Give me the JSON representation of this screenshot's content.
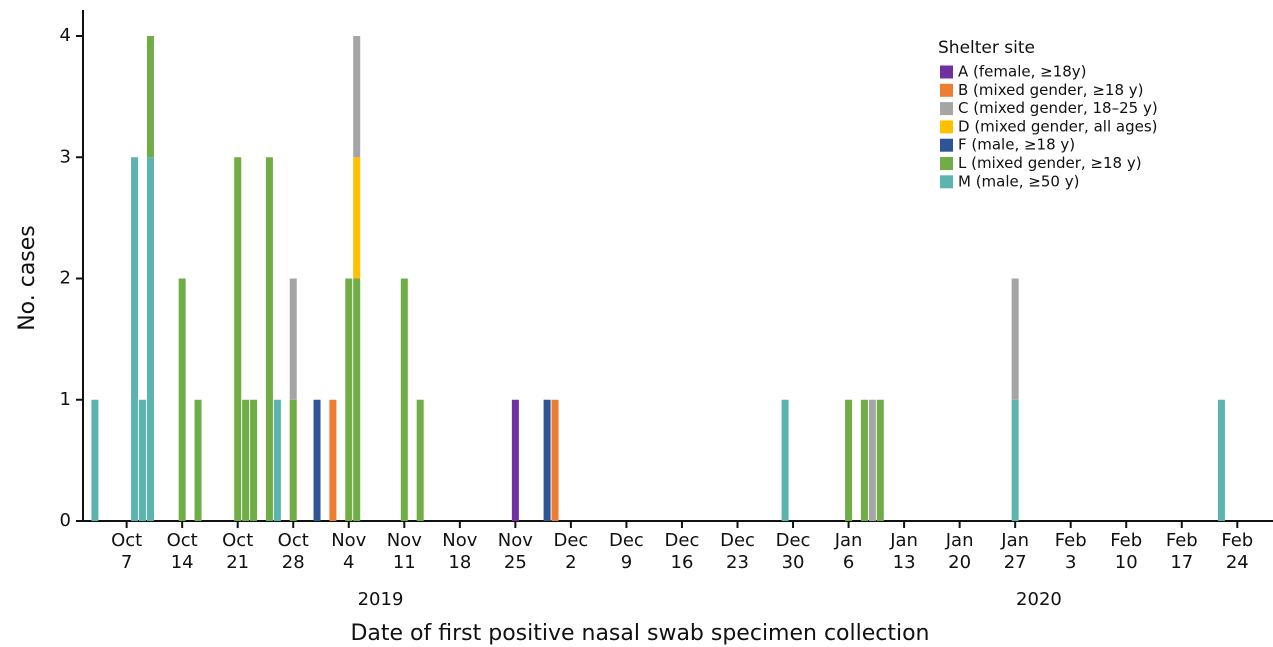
{
  "chart_data": {
    "type": "stacked_bar",
    "xlabel": "Date of first positive nasal swab specimen collection",
    "ylabel": "No. cases",
    "legend_title": "Shelter site",
    "legend_position": "upper right",
    "annotations": [
      {
        "text": "2019",
        "x": "2019-11-08"
      },
      {
        "text": "2020",
        "x": "2020-01-30"
      }
    ],
    "x": [
      "2019-10-03",
      "2019-10-08",
      "2019-10-09",
      "2019-10-10",
      "2019-10-14",
      "2019-10-16",
      "2019-10-21",
      "2019-10-22",
      "2019-10-23",
      "2019-10-25",
      "2019-10-26",
      "2019-10-28",
      "2019-10-31",
      "2019-11-02",
      "2019-11-04",
      "2019-11-05",
      "2019-11-11",
      "2019-11-13",
      "2019-11-25",
      "2019-11-29",
      "2019-11-30",
      "2019-12-29",
      "2020-01-06",
      "2020-01-08",
      "2020-01-09",
      "2020-01-10",
      "2020-01-27",
      "2020-02-22"
    ],
    "series": [
      {
        "name": "A (female, ≥18y)",
        "color": "#7030a0",
        "values": [
          0,
          0,
          0,
          0,
          0,
          0,
          0,
          0,
          0,
          0,
          0,
          0,
          0,
          0,
          0,
          0,
          0,
          0,
          1,
          0,
          0,
          0,
          0,
          0,
          0,
          0,
          0,
          0
        ]
      },
      {
        "name": "B (mixed gender, ≥18 y)",
        "color": "#ed7d31",
        "values": [
          0,
          0,
          0,
          0,
          0,
          0,
          0,
          0,
          0,
          0,
          0,
          0,
          0,
          1,
          0,
          0,
          0,
          0,
          0,
          0,
          1,
          0,
          0,
          0,
          0,
          0,
          0,
          0
        ]
      },
      {
        "name": "C (mixed gender, 18–25 y)",
        "color": "#a5a5a5",
        "values": [
          0,
          0,
          0,
          0,
          0,
          0,
          0,
          0,
          0,
          0,
          0,
          1,
          0,
          0,
          0,
          1,
          0,
          0,
          0,
          0,
          0,
          0,
          0,
          0,
          1,
          0,
          1,
          0
        ]
      },
      {
        "name": "D (mixed gender, all ages)",
        "color": "#ffc000",
        "values": [
          0,
          0,
          0,
          0,
          0,
          0,
          0,
          0,
          0,
          0,
          0,
          0,
          0,
          0,
          0,
          1,
          0,
          0,
          0,
          0,
          0,
          0,
          0,
          0,
          0,
          0,
          0,
          0
        ]
      },
      {
        "name": "F (male, ≥18 y)",
        "color": "#2f5597",
        "values": [
          0,
          0,
          0,
          0,
          0,
          0,
          0,
          0,
          0,
          0,
          0,
          0,
          1,
          0,
          0,
          0,
          0,
          0,
          0,
          1,
          0,
          0,
          0,
          0,
          0,
          0,
          0,
          0
        ]
      },
      {
        "name": "L (mixed gender, ≥18 y)",
        "color": "#70ad47",
        "values": [
          0,
          0,
          0,
          1,
          2,
          1,
          3,
          1,
          1,
          3,
          0,
          1,
          0,
          0,
          2,
          2,
          2,
          1,
          0,
          0,
          0,
          0,
          1,
          1,
          0,
          1,
          0,
          0
        ]
      },
      {
        "name": "M (male, ≥50 y)",
        "color": "#5bb5ae",
        "values": [
          1,
          3,
          1,
          3,
          0,
          0,
          0,
          0,
          0,
          0,
          1,
          0,
          0,
          0,
          0,
          0,
          0,
          0,
          0,
          0,
          0,
          1,
          0,
          0,
          0,
          0,
          1,
          1
        ]
      }
    ],
    "stack_order": [
      "M (male, ≥50 y)",
      "L (mixed gender, ≥18 y)",
      "F (male, ≥18 y)",
      "D (mixed gender, all ages)",
      "C (mixed gender, 18–25 y)",
      "B (mixed gender, ≥18 y)",
      "A (female, ≥18y)"
    ],
    "xlim": [
      "2019-10-01T12:00:00Z",
      "2020-02-28T12:00:00Z"
    ],
    "xticks": [
      {
        "value": "2019-10-07",
        "label": "Oct 7"
      },
      {
        "value": "2019-10-14",
        "label": "Oct 14"
      },
      {
        "value": "2019-10-21",
        "label": "Oct 21"
      },
      {
        "value": "2019-10-28",
        "label": "Oct 28"
      },
      {
        "value": "2019-11-04",
        "label": "Nov 4"
      },
      {
        "value": "2019-11-11",
        "label": "Nov 11"
      },
      {
        "value": "2019-11-18",
        "label": "Nov 18"
      },
      {
        "value": "2019-11-25",
        "label": "Nov 25"
      },
      {
        "value": "2019-12-02",
        "label": "Dec 2"
      },
      {
        "value": "2019-12-09",
        "label": "Dec 9"
      },
      {
        "value": "2019-12-16",
        "label": "Dec 16"
      },
      {
        "value": "2019-12-23",
        "label": "Dec 23"
      },
      {
        "value": "2019-12-30",
        "label": "Dec 30"
      },
      {
        "value": "2020-01-06",
        "label": "Jan 6"
      },
      {
        "value": "2020-01-13",
        "label": "Jan 13"
      },
      {
        "value": "2020-01-20",
        "label": "Jan 20"
      },
      {
        "value": "2020-01-27",
        "label": "Jan 27"
      },
      {
        "value": "2020-02-03",
        "label": "Feb 3"
      },
      {
        "value": "2020-02-10",
        "label": "Feb 10"
      },
      {
        "value": "2020-02-17",
        "label": "Feb 17"
      },
      {
        "value": "2020-02-24",
        "label": "Feb 24"
      }
    ],
    "ylim": [
      0,
      4
    ],
    "yticks": [
      0,
      1,
      2,
      3,
      4
    ],
    "grid": false
  }
}
